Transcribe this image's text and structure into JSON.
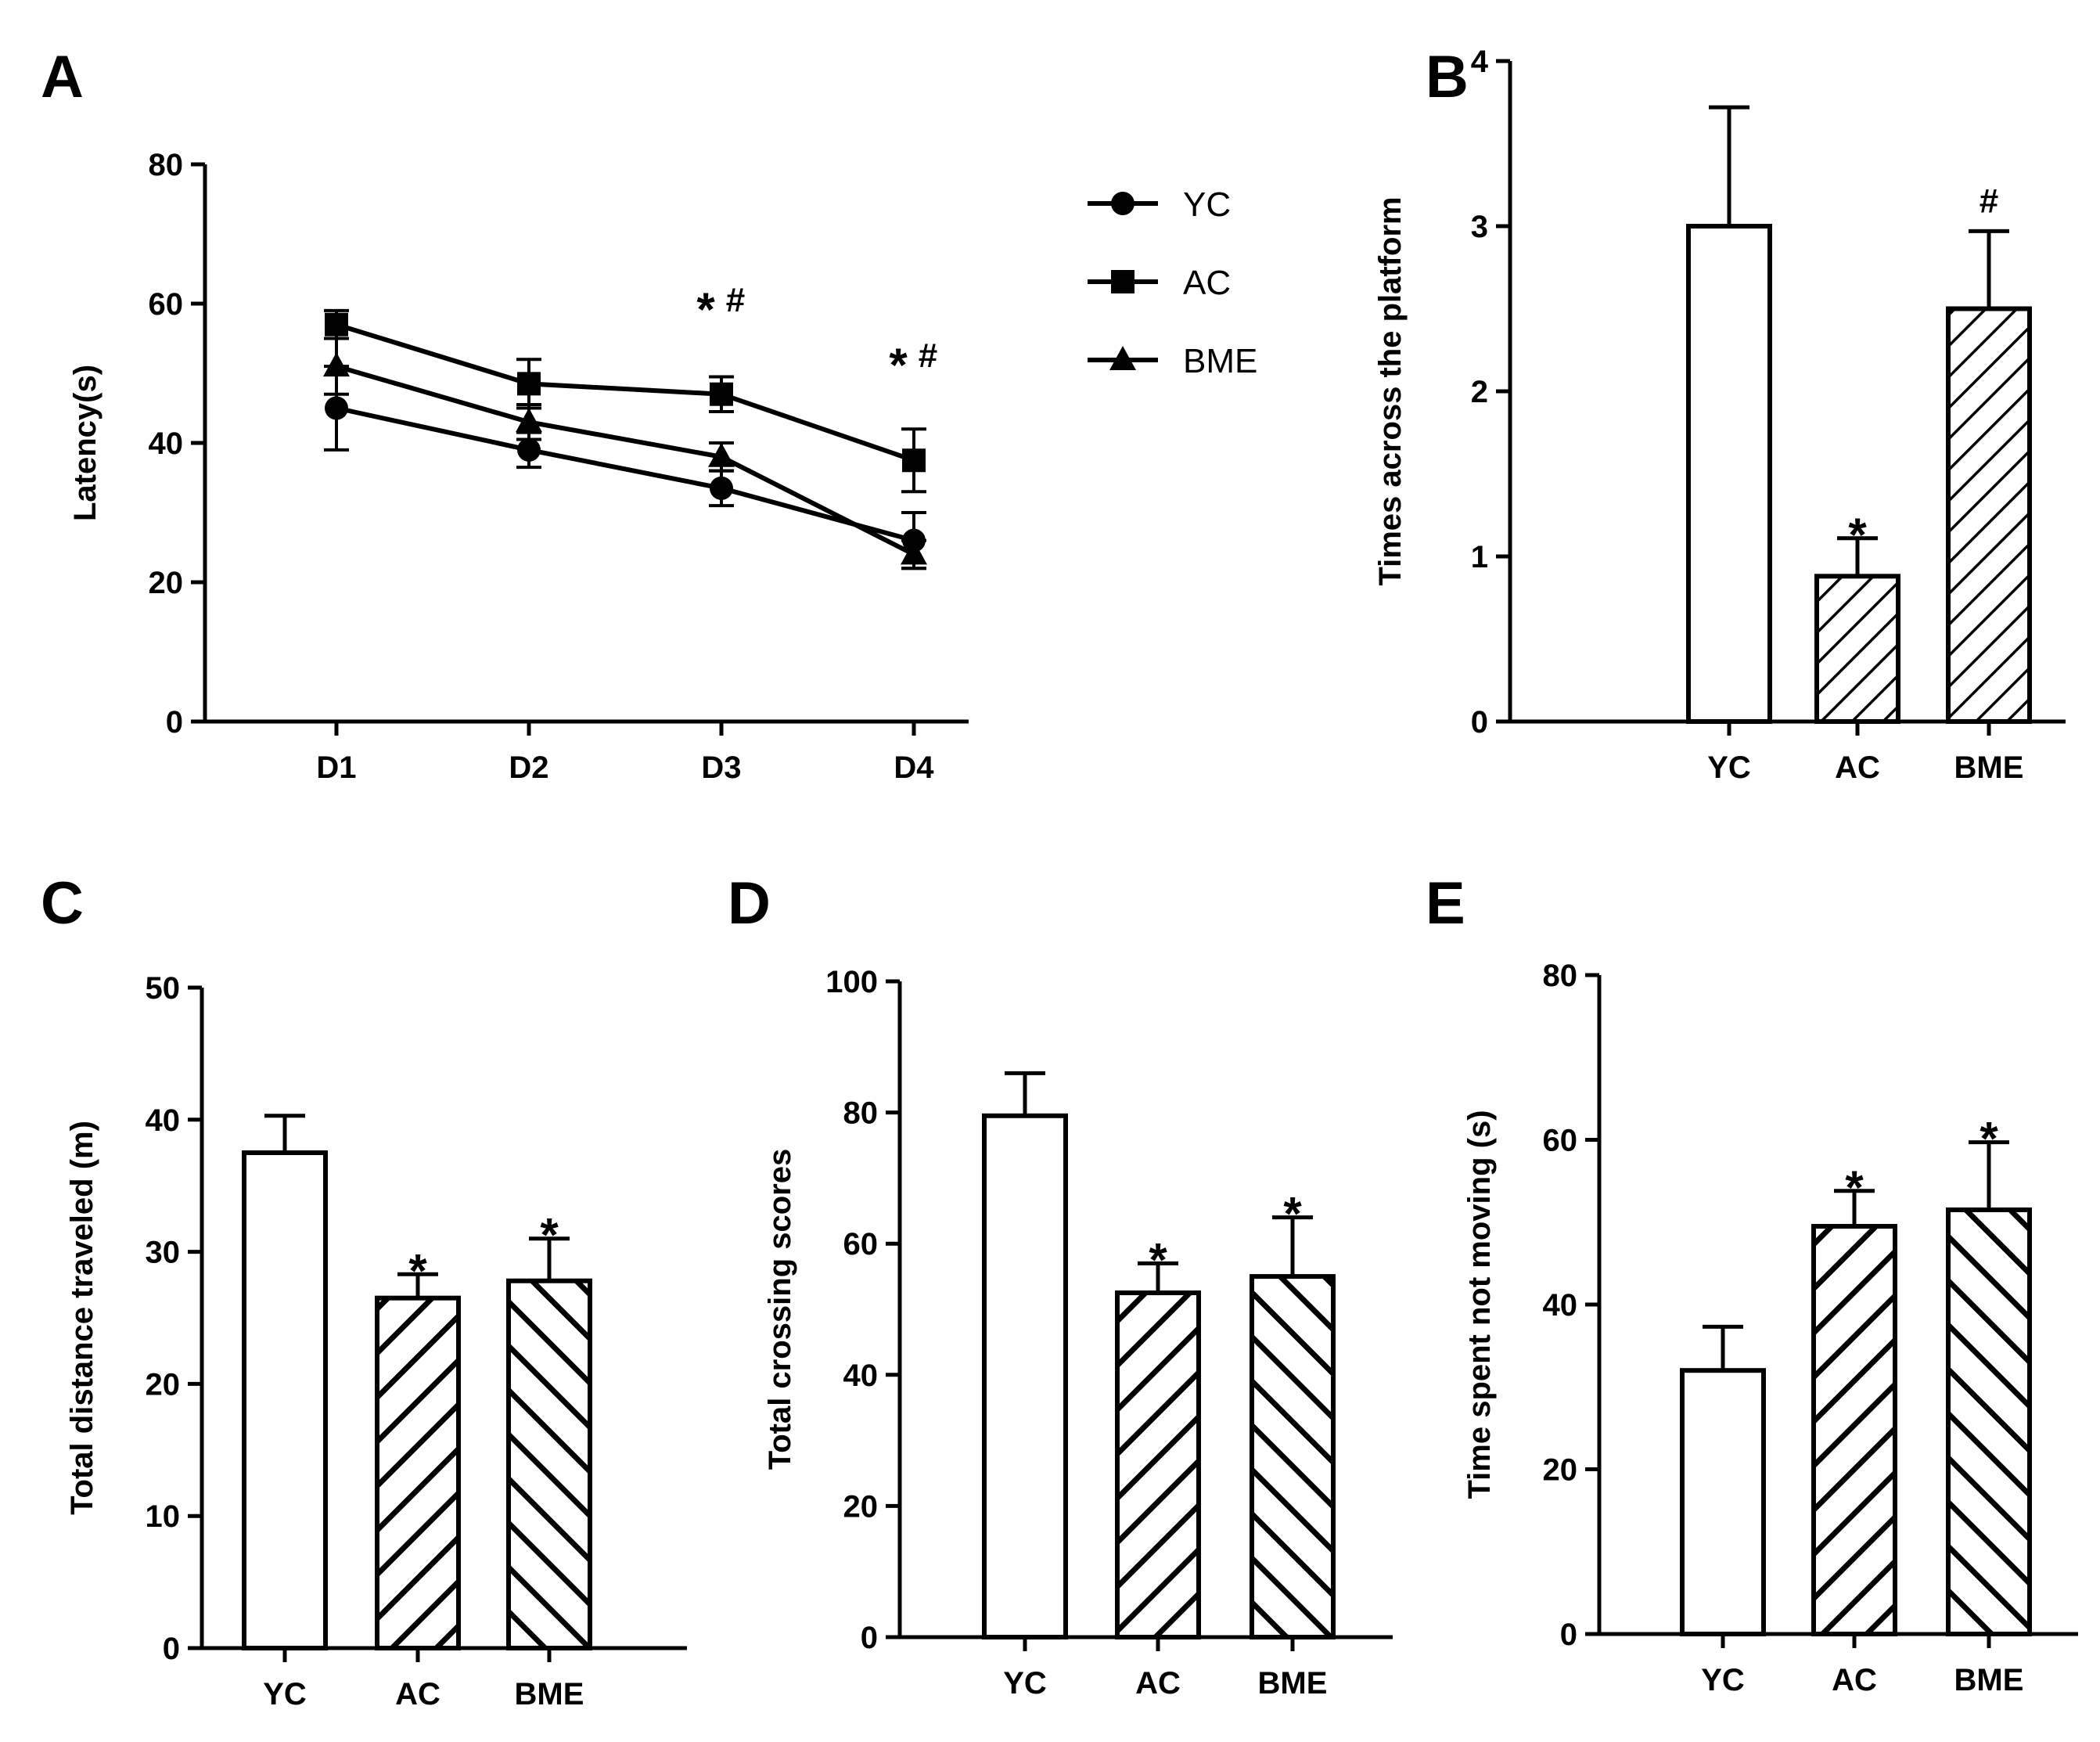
{
  "chart_data": [
    {
      "panel": "A",
      "type": "line",
      "categories": [
        "D1",
        "D2",
        "D3",
        "D4"
      ],
      "ylabel": "Latency(s)",
      "ylim": [
        0,
        80
      ],
      "yticks": [
        0,
        20,
        40,
        60,
        80
      ],
      "series": [
        {
          "name": "YC",
          "marker": "circle",
          "values": [
            45,
            39,
            33.5,
            26
          ],
          "errors": [
            6,
            2.5,
            2.5,
            4
          ]
        },
        {
          "name": "AC",
          "marker": "square",
          "values": [
            57,
            48.5,
            47,
            37.5
          ],
          "errors": [
            2,
            3.5,
            2.5,
            4.5
          ]
        },
        {
          "name": "BME",
          "marker": "triangle",
          "values": [
            51,
            43,
            38,
            24
          ],
          "errors": [
            4,
            2.5,
            2,
            2
          ]
        }
      ],
      "annotations": [
        {
          "category": "D3",
          "y": 60,
          "star": "*",
          "hash": "#"
        },
        {
          "category": "D4",
          "y": 52,
          "star": "*",
          "hash": "#"
        }
      ]
    },
    {
      "panel": "B",
      "type": "bar",
      "categories": [
        "YC",
        "AC",
        "BME"
      ],
      "values": [
        3.0,
        0.88,
        2.5
      ],
      "errors": [
        0.72,
        0.23,
        0.47
      ],
      "patterns": [
        "none",
        "hatch",
        "hatch"
      ],
      "ylabel": "Times across the platform",
      "ylim": [
        0,
        4
      ],
      "yticks": [
        0,
        1,
        2,
        3,
        4
      ],
      "annotations": [
        "",
        "*",
        "#"
      ]
    },
    {
      "panel": "C",
      "type": "bar",
      "categories": [
        "YC",
        "AC",
        "BME"
      ],
      "values": [
        37.5,
        26.5,
        27.8
      ],
      "errors": [
        2.8,
        1.8,
        3.2
      ],
      "patterns": [
        "none",
        "hatch",
        "hatch-back"
      ],
      "ylabel": "Total distance traveled (m)",
      "ylim": [
        0,
        50
      ],
      "yticks": [
        0,
        10,
        20,
        30,
        40,
        50
      ],
      "annotations": [
        "",
        "*",
        "*"
      ]
    },
    {
      "panel": "D",
      "type": "bar",
      "categories": [
        "YC",
        "AC",
        "BME"
      ],
      "values": [
        79.5,
        52.5,
        55
      ],
      "errors": [
        6.5,
        4.5,
        9
      ],
      "patterns": [
        "none",
        "hatch",
        "hatch-back"
      ],
      "ylabel": "Total crossing scores",
      "ylim": [
        0,
        100
      ],
      "yticks": [
        0,
        20,
        40,
        60,
        80,
        100
      ],
      "annotations": [
        "",
        "*",
        "*"
      ]
    },
    {
      "panel": "E",
      "type": "bar",
      "categories": [
        "YC",
        "AC",
        "BME"
      ],
      "values": [
        32,
        49.5,
        51.5
      ],
      "errors": [
        5.3,
        4.3,
        8.2
      ],
      "patterns": [
        "none",
        "hatch",
        "hatch-back"
      ],
      "ylabel": "Time spent not moving (s)",
      "ylim": [
        0,
        80
      ],
      "yticks": [
        0,
        20,
        40,
        60,
        80
      ],
      "annotations": [
        "",
        "*",
        "*"
      ]
    }
  ]
}
